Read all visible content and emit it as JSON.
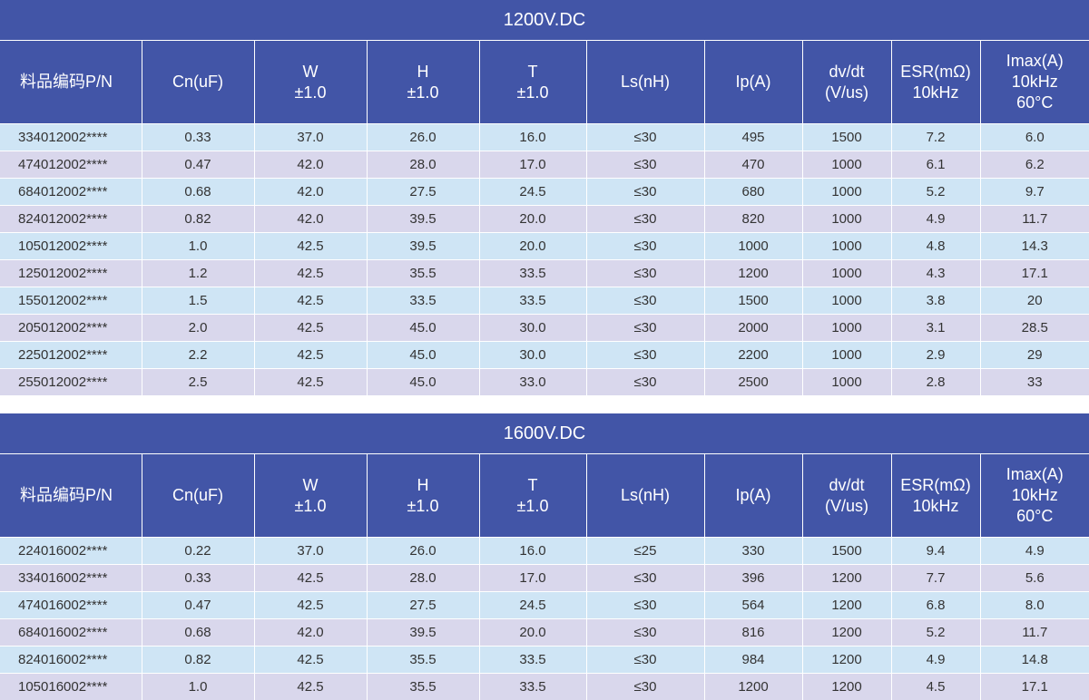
{
  "headers": [
    "料品编码P/N",
    "Cn(uF)",
    "W\n±1.0",
    "H\n±1.0",
    "T\n±1.0",
    "Ls(nH)",
    "Ip(A)",
    "dv/dt\n(V/us)",
    "ESR(mΩ)\n10kHz",
    "Imax(A)\n10kHz\n60°C"
  ],
  "tables": [
    {
      "title": "1200V.DC",
      "rows": [
        [
          "334012002****",
          "0.33",
          "37.0",
          "26.0",
          "16.0",
          "≤30",
          "495",
          "1500",
          "7.2",
          "6.0"
        ],
        [
          "474012002****",
          "0.47",
          "42.0",
          "28.0",
          "17.0",
          "≤30",
          "470",
          "1000",
          "6.1",
          "6.2"
        ],
        [
          "684012002****",
          "0.68",
          "42.0",
          "27.5",
          "24.5",
          "≤30",
          "680",
          "1000",
          "5.2",
          "9.7"
        ],
        [
          "824012002****",
          "0.82",
          "42.0",
          "39.5",
          "20.0",
          "≤30",
          "820",
          "1000",
          "4.9",
          "11.7"
        ],
        [
          "105012002****",
          "1.0",
          "42.5",
          "39.5",
          "20.0",
          "≤30",
          "1000",
          "1000",
          "4.8",
          "14.3"
        ],
        [
          "125012002****",
          "1.2",
          "42.5",
          "35.5",
          "33.5",
          "≤30",
          "1200",
          "1000",
          "4.3",
          "17.1"
        ],
        [
          "155012002****",
          "1.5",
          "42.5",
          "33.5",
          "33.5",
          "≤30",
          "1500",
          "1000",
          "3.8",
          "20"
        ],
        [
          "205012002****",
          "2.0",
          "42.5",
          "45.0",
          "30.0",
          "≤30",
          "2000",
          "1000",
          "3.1",
          "28.5"
        ],
        [
          "225012002****",
          "2.2",
          "42.5",
          "45.0",
          "30.0",
          "≤30",
          "2200",
          "1000",
          "2.9",
          "29"
        ],
        [
          "255012002****",
          "2.5",
          "42.5",
          "45.0",
          "33.0",
          "≤30",
          "2500",
          "1000",
          "2.8",
          "33"
        ]
      ]
    },
    {
      "title": "1600V.DC",
      "rows": [
        [
          "224016002****",
          "0.22",
          "37.0",
          "26.0",
          "16.0",
          "≤25",
          "330",
          "1500",
          "9.4",
          "4.9"
        ],
        [
          "334016002****",
          "0.33",
          "42.5",
          "28.0",
          "17.0",
          "≤30",
          "396",
          "1200",
          "7.7",
          "5.6"
        ],
        [
          "474016002****",
          "0.47",
          "42.5",
          "27.5",
          "24.5",
          "≤30",
          "564",
          "1200",
          "6.8",
          "8.0"
        ],
        [
          "684016002****",
          "0.68",
          "42.0",
          "39.5",
          "20.0",
          "≤30",
          "816",
          "1200",
          "5.2",
          "11.7"
        ],
        [
          "824016002****",
          "0.82",
          "42.5",
          "35.5",
          "33.5",
          "≤30",
          "984",
          "1200",
          "4.9",
          "14.8"
        ],
        [
          "105016002****",
          "1.0",
          "42.5",
          "35.5",
          "33.5",
          "≤30",
          "1200",
          "1200",
          "4.5",
          "17.1"
        ]
      ]
    }
  ]
}
